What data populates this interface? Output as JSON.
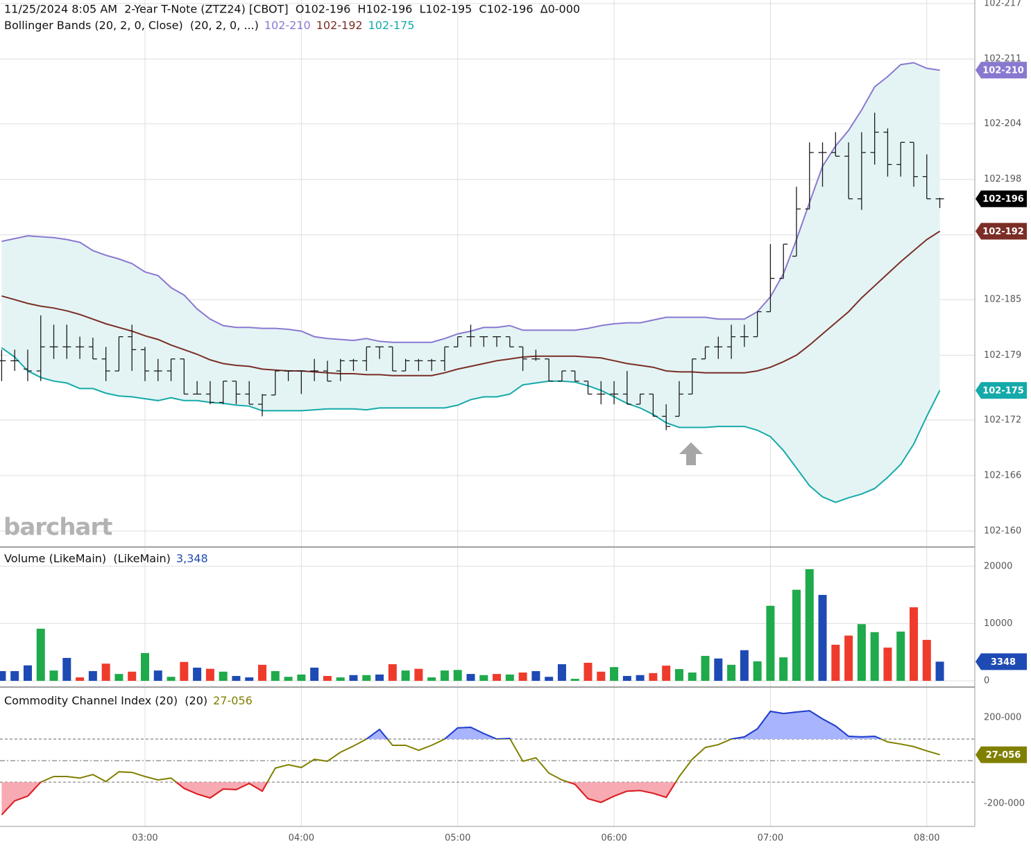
{
  "watermark": "barchart",
  "chart_data": [
    {
      "type": "ohlc",
      "title": "11/25/2024 8:05 AM  2-Year T-Note (ZTZ24) [CBOT]  O102-196  H102-196  L102-195  C102-196  Δ0-000",
      "x": [
        "02:05",
        "02:10",
        "02:15",
        "02:20",
        "02:25",
        "02:30",
        "02:35",
        "02:40",
        "02:45",
        "02:50",
        "02:55",
        "03:00",
        "03:05",
        "03:10",
        "03:15",
        "03:20",
        "03:25",
        "03:30",
        "03:35",
        "03:40",
        "03:45",
        "03:50",
        "03:55",
        "04:00",
        "04:05",
        "04:10",
        "04:15",
        "04:20",
        "04:25",
        "04:30",
        "04:35",
        "04:40",
        "04:45",
        "04:50",
        "04:55",
        "05:00",
        "05:05",
        "05:10",
        "05:15",
        "05:20",
        "05:25",
        "05:30",
        "05:35",
        "05:40",
        "05:45",
        "05:50",
        "05:55",
        "06:00",
        "06:05",
        "06:10",
        "06:15",
        "06:20",
        "06:25",
        "06:30",
        "06:35",
        "06:40",
        "06:45",
        "06:50",
        "06:55",
        "07:00",
        "07:05",
        "07:10",
        "07:15",
        "07:20",
        "07:25",
        "07:30",
        "07:35",
        "07:40",
        "07:45",
        "07:50",
        "07:55",
        "08:00",
        "08:05"
      ],
      "xticks": [
        "03:00",
        "04:00",
        "05:00",
        "06:00",
        "07:00",
        "08:00"
      ],
      "open": [
        178.4,
        178.4,
        177.5,
        177.3,
        179.9,
        179.9,
        179.9,
        179.9,
        178.6,
        177.3,
        181.0,
        179.6,
        177.3,
        177.3,
        178.6,
        174.8,
        174.8,
        173.9,
        176.2,
        174.8,
        173.7,
        174.7,
        177.3,
        177.3,
        177.3,
        177.3,
        177.3,
        178.4,
        178.4,
        179.9,
        179.9,
        177.3,
        178.4,
        178.4,
        178.4,
        179.9,
        181.0,
        181.0,
        181.0,
        181.0,
        179.9,
        178.6,
        178.6,
        176.2,
        177.3,
        176.2,
        174.8,
        174.8,
        174.8,
        173.7,
        174.8,
        172.4,
        172.4,
        174.8,
        178.6,
        179.9,
        179.9,
        181.0,
        181.0,
        183.7,
        187.3,
        189.7,
        194.8,
        200.9,
        200.9,
        200.5,
        195.9,
        200.9,
        203.1,
        199.6,
        202.0,
        198.3,
        195.9
      ],
      "high": [
        179.6,
        179.6,
        179.6,
        183.3,
        182.3,
        182.3,
        181.0,
        180.9,
        179.9,
        181.0,
        182.3,
        179.9,
        178.6,
        178.6,
        178.6,
        176.2,
        176.2,
        176.2,
        176.2,
        176.2,
        174.8,
        177.3,
        177.3,
        177.3,
        178.6,
        178.4,
        178.6,
        178.6,
        179.9,
        179.9,
        179.9,
        178.6,
        178.6,
        178.6,
        179.9,
        181.0,
        182.3,
        181.0,
        181.0,
        181.0,
        179.9,
        179.6,
        178.6,
        177.3,
        177.3,
        176.2,
        176.2,
        176.2,
        177.3,
        174.8,
        174.8,
        173.7,
        176.2,
        178.6,
        179.9,
        181.0,
        182.3,
        182.3,
        183.7,
        191.0,
        191.0,
        197.2,
        202.0,
        202.0,
        203.1,
        202.0,
        203.1,
        205.2,
        203.5,
        202.0,
        202.0,
        200.7,
        196.0
      ],
      "low": [
        176.2,
        177.3,
        176.2,
        176.2,
        178.6,
        178.6,
        178.6,
        178.6,
        176.2,
        177.3,
        177.3,
        176.2,
        176.2,
        176.2,
        174.8,
        174.8,
        173.7,
        173.7,
        173.7,
        173.7,
        172.4,
        174.7,
        176.2,
        174.8,
        176.2,
        176.2,
        176.2,
        177.3,
        177.3,
        178.6,
        177.3,
        177.3,
        177.3,
        177.3,
        177.3,
        179.9,
        179.9,
        179.9,
        179.9,
        179.9,
        177.3,
        178.4,
        176.2,
        176.2,
        176.2,
        174.8,
        173.7,
        173.7,
        173.7,
        173.7,
        172.4,
        170.9,
        172.4,
        174.8,
        178.6,
        178.6,
        178.6,
        179.9,
        181.0,
        183.7,
        187.3,
        189.7,
        194.8,
        197.2,
        200.5,
        195.9,
        194.7,
        199.6,
        198.3,
        198.3,
        197.2,
        195.9,
        194.9
      ],
      "close": [
        178.4,
        178.4,
        177.3,
        179.9,
        179.9,
        179.9,
        179.9,
        178.6,
        177.3,
        181.0,
        179.6,
        177.3,
        177.3,
        178.6,
        174.8,
        174.8,
        173.9,
        176.2,
        174.8,
        173.7,
        174.7,
        177.3,
        177.3,
        177.3,
        177.3,
        176.2,
        178.4,
        178.4,
        179.9,
        179.9,
        177.3,
        178.4,
        178.4,
        178.4,
        179.9,
        181.0,
        181.0,
        181.0,
        181.0,
        179.9,
        178.6,
        178.6,
        176.2,
        177.3,
        176.2,
        174.8,
        174.8,
        174.8,
        173.7,
        174.8,
        172.4,
        171.3,
        174.8,
        178.6,
        179.9,
        179.9,
        181.0,
        181.0,
        183.7,
        187.3,
        191.0,
        194.8,
        200.9,
        200.9,
        200.5,
        195.9,
        200.9,
        203.1,
        199.6,
        202.0,
        198.3,
        195.9,
        195.9
      ],
      "color": "#1a1a1a",
      "last_label": "102-196",
      "ylim": [
        158.35,
        217.38
      ],
      "yticks": [
        {
          "value": 160,
          "label": "102-160"
        },
        {
          "value": 166,
          "label": "102-166"
        },
        {
          "value": 172,
          "label": "102-172"
        },
        {
          "value": 179,
          "label": "102-179"
        },
        {
          "value": 185,
          "label": "102-185"
        },
        {
          "value": 192,
          "label": "102-192"
        },
        {
          "value": 198,
          "label": "102-198"
        },
        {
          "value": 204,
          "label": "102-204"
        },
        {
          "value": 211,
          "label": "102-211"
        },
        {
          "value": 217,
          "label": "102-217"
        }
      ],
      "grid": true,
      "band_title": "Bollinger Bands (20, 2, 0, Close)  (20, 2, 0, ...)",
      "band_fill": "#e4f4f4",
      "series": [
        {
          "color": "#8a78d0",
          "value_label": "102-210",
          "values": [
            191.3,
            191.6,
            191.9,
            191.8,
            191.7,
            191.5,
            191.2,
            190.3,
            189.8,
            189.4,
            188.9,
            188.0,
            187.6,
            186.3,
            185.5,
            184.0,
            182.9,
            182.2,
            182.0,
            182.0,
            181.9,
            181.9,
            181.8,
            181.6,
            181.0,
            180.8,
            180.7,
            180.6,
            180.8,
            180.5,
            180.4,
            180.4,
            180.4,
            180.4,
            180.8,
            181.3,
            181.6,
            182.0,
            182.0,
            182.2,
            181.7,
            181.7,
            181.7,
            181.7,
            181.7,
            181.9,
            182.2,
            182.4,
            182.5,
            182.5,
            182.8,
            183.1,
            183.1,
            183.1,
            183.1,
            182.9,
            182.9,
            182.9,
            183.7,
            185.3,
            187.8,
            191.5,
            195.5,
            199.4,
            201.6,
            203.3,
            205.5,
            208.0,
            209.1,
            210.4,
            210.6,
            210.0,
            209.8
          ]
        },
        {
          "color": "#7b2d26",
          "value_label": "102-192",
          "values": [
            185.4,
            185.0,
            184.6,
            184.3,
            184.1,
            183.8,
            183.4,
            182.9,
            182.4,
            182.0,
            181.6,
            181.1,
            180.7,
            180.1,
            179.6,
            179.1,
            178.5,
            178.1,
            177.9,
            177.8,
            177.5,
            177.4,
            177.3,
            177.3,
            177.2,
            177.1,
            177.0,
            177.0,
            176.9,
            176.9,
            176.8,
            176.8,
            176.8,
            176.8,
            177.1,
            177.5,
            177.8,
            178.1,
            178.4,
            178.6,
            178.8,
            178.9,
            178.9,
            178.9,
            178.9,
            178.8,
            178.7,
            178.4,
            178.1,
            177.9,
            177.7,
            177.3,
            177.2,
            177.2,
            177.1,
            177.1,
            177.1,
            177.1,
            177.3,
            177.7,
            178.3,
            179.0,
            180.1,
            181.3,
            182.5,
            183.7,
            185.2,
            186.5,
            187.8,
            189.1,
            190.3,
            191.5,
            192.4
          ]
        },
        {
          "color": "#15a9a9",
          "value_label": "102-175",
          "values": [
            179.8,
            178.8,
            177.3,
            176.6,
            176.2,
            176.0,
            175.4,
            175.4,
            174.9,
            174.6,
            174.5,
            174.3,
            174.1,
            174.4,
            174.1,
            174.1,
            173.9,
            173.8,
            173.6,
            173.5,
            173.0,
            173.0,
            173.0,
            173.0,
            173.1,
            173.2,
            173.2,
            173.2,
            173.1,
            173.3,
            173.3,
            173.3,
            173.3,
            173.3,
            173.3,
            173.6,
            174.2,
            174.5,
            174.5,
            174.8,
            175.8,
            176.0,
            176.2,
            176.2,
            176.1,
            175.7,
            175.2,
            174.5,
            173.8,
            173.3,
            172.6,
            171.7,
            171.2,
            171.2,
            171.2,
            171.3,
            171.3,
            171.3,
            170.9,
            170.2,
            168.7,
            166.8,
            164.9,
            163.7,
            163.1,
            163.6,
            164.0,
            164.6,
            165.8,
            167.2,
            169.4,
            172.4,
            175.2
          ]
        }
      ]
    },
    {
      "type": "bar",
      "title": "Volume (LikeMain)  (LikeMain)",
      "value_label": "3,348",
      "badge_label": "3348",
      "label_color": "#1e4ab4",
      "values": [
        1700,
        1700,
        2700,
        9100,
        1800,
        4000,
        600,
        1700,
        3000,
        1200,
        1600,
        4850,
        1800,
        700,
        3300,
        2300,
        2100,
        1600,
        850,
        600,
        2800,
        1700,
        700,
        1100,
        2300,
        850,
        600,
        1000,
        1000,
        1100,
        2900,
        1800,
        2100,
        600,
        1800,
        1900,
        1200,
        1000,
        1200,
        1100,
        1450,
        1700,
        700,
        2900,
        350,
        3150,
        1600,
        2400,
        850,
        1000,
        1350,
        2650,
        2050,
        1450,
        4350,
        3900,
        2800,
        5350,
        3400,
        13100,
        4100,
        15900,
        19500,
        15000,
        6300,
        7900,
        9900,
        8500,
        5800,
        8600,
        12850,
        7150,
        3348
      ],
      "colors": [
        "#1e4ab4",
        "#1e4ab4",
        "#1e4ab4",
        "#1faa4b",
        "#1faa4b",
        "#1e4ab4",
        "#ef3b2c",
        "#1e4ab4",
        "#ef3b2c",
        "#1faa4b",
        "#ef3b2c",
        "#1faa4b",
        "#1e4ab4",
        "#1faa4b",
        "#ef3b2c",
        "#1e4ab4",
        "#ef3b2c",
        "#1faa4b",
        "#1e4ab4",
        "#1e4ab4",
        "#ef3b2c",
        "#1faa4b",
        "#1faa4b",
        "#1faa4b",
        "#1e4ab4",
        "#ef3b2c",
        "#1faa4b",
        "#1e4ab4",
        "#1faa4b",
        "#1e4ab4",
        "#ef3b2c",
        "#1faa4b",
        "#ef3b2c",
        "#1faa4b",
        "#1faa4b",
        "#1faa4b",
        "#1e4ab4",
        "#1faa4b",
        "#ef3b2c",
        "#1faa4b",
        "#ef3b2c",
        "#1e4ab4",
        "#1e4ab4",
        "#1e4ab4",
        "#1faa4b",
        "#ef3b2c",
        "#ef3b2c",
        "#1faa4b",
        "#1e4ab4",
        "#1e4ab4",
        "#ef3b2c",
        "#ef3b2c",
        "#1faa4b",
        "#1faa4b",
        "#1faa4b",
        "#1e4ab4",
        "#1faa4b",
        "#1e4ab4",
        "#1faa4b",
        "#1faa4b",
        "#1faa4b",
        "#1faa4b",
        "#1faa4b",
        "#1e4ab4",
        "#ef3b2c",
        "#ef3b2c",
        "#1faa4b",
        "#1faa4b",
        "#ef3b2c",
        "#1faa4b",
        "#ef3b2c",
        "#ef3b2c",
        "#1e4ab4"
      ],
      "ylim": [
        -970,
        23000
      ],
      "yticks": [
        0,
        10000,
        20000
      ],
      "grid": true
    },
    {
      "type": "line",
      "title": "Commodity Channel Index (20)  (20)",
      "value_label": "27-056",
      "color": "#808000",
      "over_color": "#1f3fdc",
      "over_fill": "#a9b4ff",
      "under_color": "#e01b2a",
      "under_fill": "#f8aab2",
      "values": [
        -252,
        -187,
        -165,
        -100,
        -74,
        -74,
        -81,
        -65,
        -97,
        -52,
        -55,
        -74,
        -90,
        -81,
        -129,
        -155,
        -174,
        -132,
        -135,
        -106,
        -142,
        -35,
        -19,
        -32,
        6,
        -3,
        39,
        68,
        100,
        145,
        71,
        71,
        48,
        71,
        100,
        152,
        155,
        126,
        100,
        103,
        -3,
        13,
        -58,
        -90,
        -110,
        -177,
        -194,
        -165,
        -142,
        -139,
        -152,
        -171,
        -74,
        6,
        61,
        74,
        100,
        110,
        148,
        229,
        219,
        226,
        232,
        194,
        161,
        113,
        110,
        113,
        87,
        77,
        65,
        45,
        27.2
      ],
      "reference_lines": [
        100,
        0,
        -100
      ],
      "ylim": [
        -306,
        329
      ],
      "yticks": [
        {
          "value": 200,
          "label": "200-000"
        },
        {
          "value": -200,
          "label": "-200-000"
        }
      ],
      "grid": false
    }
  ]
}
